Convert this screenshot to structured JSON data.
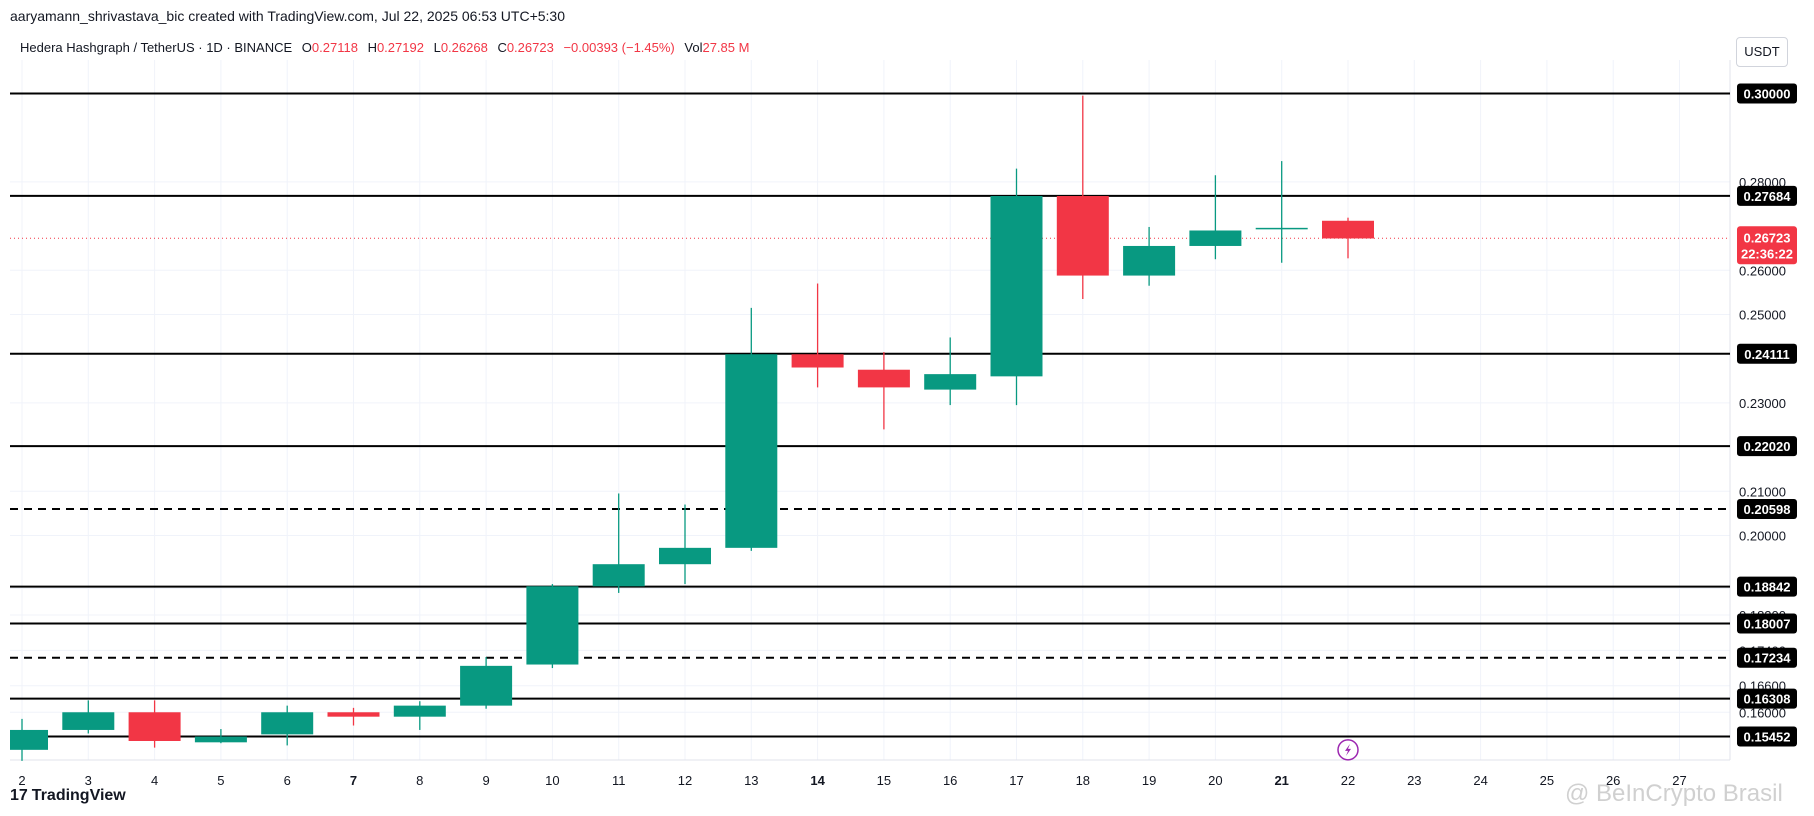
{
  "header": {
    "credit": "aaryamann_shrivastava_bic created with TradingView.com, Jul 22, 2025 06:53 UTC+5:30",
    "symbol": "Hedera Hashgraph / TetherUS · 1D · BINANCE",
    "open_label": "O",
    "open": "0.27118",
    "high_label": "H",
    "high": "0.27192",
    "low_label": "L",
    "low": "0.26268",
    "close_label": "C",
    "close": "0.26723",
    "change": "−0.00393 (−1.45%)",
    "vol_label": "Vol",
    "vol": "27.85 M",
    "currency": "USDT"
  },
  "footer": {
    "logo_text": "TradingView",
    "watermark": "@ BeInCrypto Brasil"
  },
  "colors": {
    "up": "#089981",
    "down": "#f23645",
    "level_line": "#000000",
    "grid": "#f0f3fa"
  },
  "chart_data": {
    "type": "candlestick",
    "y_range": [
      0.1492,
      0.3035
    ],
    "y_ticks": [
      "0.28000",
      "0.26000",
      "0.25000",
      "0.23000",
      "0.21000",
      "0.20000",
      "0.18800",
      "0.18200",
      "0.17400",
      "0.16600",
      "0.16000"
    ],
    "x_ticks": [
      "2",
      "3",
      "4",
      "5",
      "6",
      "7",
      "8",
      "9",
      "10",
      "11",
      "12",
      "13",
      "14",
      "15",
      "16",
      "17",
      "18",
      "19",
      "20",
      "21",
      "22",
      "23",
      "24",
      "25",
      "26",
      "27"
    ],
    "bold_ticks": [
      "7",
      "14",
      "21"
    ],
    "candles": [
      {
        "d": "2",
        "o": 0.1515,
        "h": 0.1585,
        "l": 0.149,
        "c": 0.156
      },
      {
        "d": "3",
        "o": 0.156,
        "h": 0.1627,
        "l": 0.1552,
        "c": 0.16
      },
      {
        "d": "4",
        "o": 0.16,
        "h": 0.1627,
        "l": 0.152,
        "c": 0.1535
      },
      {
        "d": "5",
        "o": 0.1532,
        "h": 0.1562,
        "l": 0.153,
        "c": 0.1545
      },
      {
        "d": "6",
        "o": 0.155,
        "h": 0.1615,
        "l": 0.1525,
        "c": 0.16
      },
      {
        "d": "7",
        "o": 0.16,
        "h": 0.161,
        "l": 0.157,
        "c": 0.159
      },
      {
        "d": "8",
        "o": 0.159,
        "h": 0.1625,
        "l": 0.156,
        "c": 0.1615
      },
      {
        "d": "9",
        "o": 0.1615,
        "h": 0.1725,
        "l": 0.1608,
        "c": 0.1705
      },
      {
        "d": "10",
        "o": 0.1708,
        "h": 0.189,
        "l": 0.17,
        "c": 0.1885
      },
      {
        "d": "11",
        "o": 0.1885,
        "h": 0.2095,
        "l": 0.187,
        "c": 0.1935
      },
      {
        "d": "12",
        "o": 0.1935,
        "h": 0.207,
        "l": 0.189,
        "c": 0.1972
      },
      {
        "d": "13",
        "o": 0.1972,
        "h": 0.2515,
        "l": 0.1965,
        "c": 0.241
      },
      {
        "d": "14",
        "o": 0.241,
        "h": 0.257,
        "l": 0.2335,
        "c": 0.238
      },
      {
        "d": "15",
        "o": 0.2375,
        "h": 0.2415,
        "l": 0.224,
        "c": 0.2335
      },
      {
        "d": "16",
        "o": 0.233,
        "h": 0.2448,
        "l": 0.2295,
        "c": 0.2365
      },
      {
        "d": "17",
        "o": 0.236,
        "h": 0.283,
        "l": 0.2295,
        "c": 0.2768
      },
      {
        "d": "18",
        "o": 0.2768,
        "h": 0.2995,
        "l": 0.2535,
        "c": 0.2588
      },
      {
        "d": "19",
        "o": 0.2588,
        "h": 0.2698,
        "l": 0.2565,
        "c": 0.2655
      },
      {
        "d": "20",
        "o": 0.2655,
        "h": 0.2815,
        "l": 0.2625,
        "c": 0.269
      },
      {
        "d": "21",
        "o": 0.2694,
        "h": 0.2847,
        "l": 0.2617,
        "c": 0.2696
      },
      {
        "d": "22",
        "o": 0.2712,
        "h": 0.2719,
        "l": 0.2627,
        "c": 0.2672
      }
    ],
    "levels": [
      {
        "value": 0.3,
        "label": "0.30000",
        "style": "solid"
      },
      {
        "value": 0.27684,
        "label": "0.27684",
        "style": "solid"
      },
      {
        "value": 0.24111,
        "label": "0.24111",
        "style": "solid"
      },
      {
        "value": 0.2202,
        "label": "0.22020",
        "style": "solid"
      },
      {
        "value": 0.20598,
        "label": "0.20598",
        "style": "dashed"
      },
      {
        "value": 0.18842,
        "label": "0.18842",
        "style": "solid"
      },
      {
        "value": 0.18007,
        "label": "0.18007",
        "style": "solid"
      },
      {
        "value": 0.17234,
        "label": "0.17234",
        "style": "dashed"
      },
      {
        "value": 0.16308,
        "label": "0.16308",
        "style": "solid"
      },
      {
        "value": 0.15452,
        "label": "0.15452",
        "style": "solid"
      }
    ],
    "current_price": {
      "value": 0.26723,
      "label": "0.26723",
      "countdown": "22:36:22"
    }
  }
}
